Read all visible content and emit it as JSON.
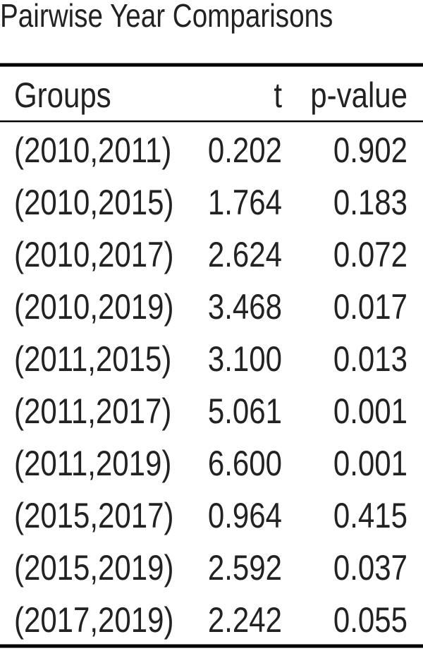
{
  "title": "Pairwise Year Comparisons",
  "table": {
    "columns": [
      "Groups",
      "t",
      "p-value"
    ],
    "rows": [
      [
        "(2010,2011)",
        "0.202",
        "0.902"
      ],
      [
        "(2010,2015)",
        "1.764",
        "0.183"
      ],
      [
        "(2010,2017)",
        "2.624",
        "0.072"
      ],
      [
        "(2010,2019)",
        "3.468",
        "0.017"
      ],
      [
        "(2011,2015)",
        "3.100",
        "0.013"
      ],
      [
        "(2011,2017)",
        "5.061",
        "0.001"
      ],
      [
        "(2011,2019)",
        "6.600",
        "0.001"
      ],
      [
        "(2015,2017)",
        "0.964",
        "0.415"
      ],
      [
        "(2015,2019)",
        "2.592",
        "0.037"
      ],
      [
        "(2017,2019)",
        "2.242",
        "0.055"
      ]
    ]
  }
}
